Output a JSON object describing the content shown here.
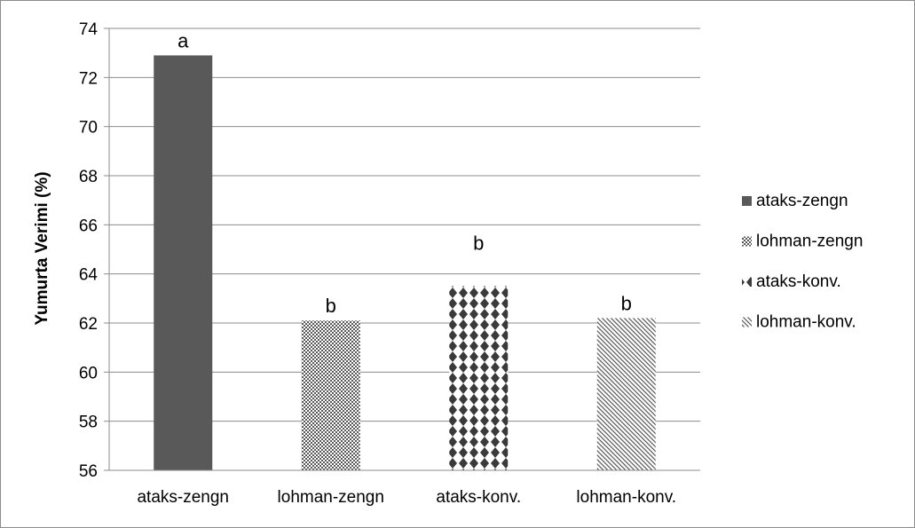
{
  "chart_data": {
    "type": "bar",
    "title": "",
    "xlabel": "",
    "ylabel": "Yumurta Verimi (%)",
    "ylim": [
      56,
      74
    ],
    "y_ticks": [
      56,
      58,
      60,
      62,
      64,
      66,
      68,
      70,
      72,
      74
    ],
    "grid": true,
    "legend_position": "right",
    "categories": [
      "ataks-zengn",
      "lohman-zengn",
      "ataks-konv.",
      "lohman-konv."
    ],
    "values": [
      72.9,
      62.1,
      63.5,
      62.2
    ],
    "significance_labels": [
      "a",
      "b",
      "b",
      "b"
    ],
    "legend": [
      "ataks-zengn",
      "lohman-zengn",
      "ataks-konv.",
      "lohman-konv."
    ],
    "series_styles": [
      {
        "fill": "solid",
        "color": "#595959"
      },
      {
        "fill": "checker",
        "color": "#595959"
      },
      {
        "fill": "diamond",
        "color": "#404040"
      },
      {
        "fill": "diagonal",
        "color": "#595959"
      }
    ]
  }
}
